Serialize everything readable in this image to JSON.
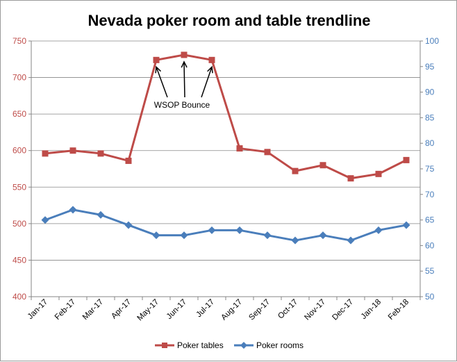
{
  "chart_data": {
    "type": "line",
    "title": "Nevada poker room and table trendline",
    "categories": [
      "Jan-17",
      "Feb-17",
      "Mar-17",
      "Apr-17",
      "May-17",
      "Jun-17",
      "Jul-17",
      "Aug-17",
      "Sep-17",
      "Oct-17",
      "Nov-17",
      "Dec-17",
      "Jan-18",
      "Feb-18"
    ],
    "series": [
      {
        "name": "Poker tables",
        "axis": "left",
        "color": "#be4b48",
        "marker": "square",
        "values": [
          596,
          600,
          596,
          586,
          724,
          731,
          724,
          603,
          598,
          572,
          580,
          562,
          568,
          587
        ]
      },
      {
        "name": "Poker rooms",
        "axis": "right",
        "color": "#4a7ebb",
        "marker": "diamond",
        "values": [
          65,
          67,
          66,
          64,
          62,
          62,
          63,
          63,
          62,
          61,
          62,
          61,
          63,
          64
        ]
      }
    ],
    "y_left": {
      "min": 400,
      "max": 750,
      "step": 50,
      "color": "#be4b48",
      "ticks": [
        "400",
        "450",
        "500",
        "550",
        "600",
        "650",
        "700",
        "750"
      ]
    },
    "y_right": {
      "min": 50,
      "max": 100,
      "step": 5,
      "color": "#4a7ebb",
      "ticks": [
        "50",
        "55",
        "60",
        "65",
        "70",
        "75",
        "80",
        "85",
        "90",
        "95",
        "100"
      ]
    },
    "grid": true,
    "legend_position": "bottom",
    "annotation": {
      "text": "WSOP Bounce",
      "points": [
        "May-17",
        "Jun-17",
        "Jul-17"
      ]
    }
  }
}
